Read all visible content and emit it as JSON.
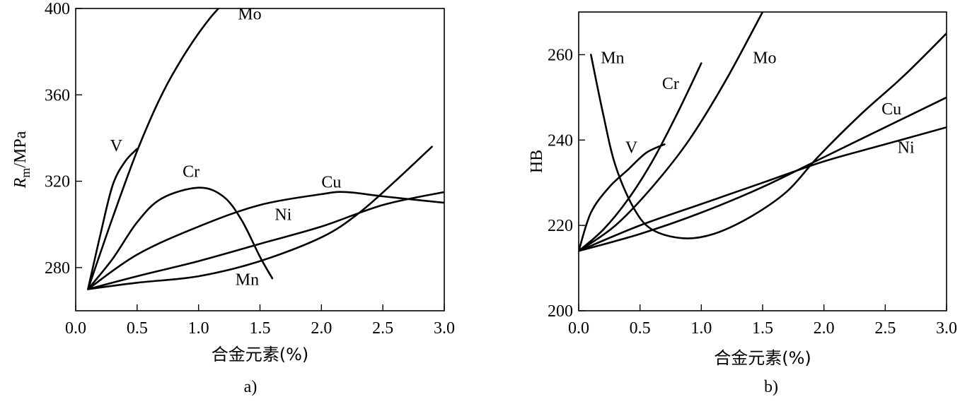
{
  "chart_data": [
    {
      "type": "line",
      "panel_label": "a)",
      "xlabel": "合金元素(%)",
      "ylabel_main": "R",
      "ylabel_sub": "m",
      "ylabel_rest": "/MPa",
      "xlim": [
        0.0,
        3.0
      ],
      "ylim": [
        260,
        400
      ],
      "x_ticks": [
        "0.0",
        "0.5",
        "1.0",
        "1.5",
        "2.0",
        "2.5",
        "3.0"
      ],
      "y_ticks": [
        "280",
        "320",
        "360",
        "400"
      ],
      "grid": false,
      "series": [
        {
          "name": "Mo",
          "points": [
            [
              0.1,
              270
            ],
            [
              0.3,
              303
            ],
            [
              0.5,
              334
            ],
            [
              0.7,
              360
            ],
            [
              0.9,
              380
            ],
            [
              1.1,
              396
            ],
            [
              1.3,
              408
            ]
          ]
        },
        {
          "name": "V",
          "points": [
            [
              0.1,
              270
            ],
            [
              0.2,
              295
            ],
            [
              0.3,
              318
            ],
            [
              0.4,
              329
            ],
            [
              0.5,
              335
            ]
          ]
        },
        {
          "name": "Cr",
          "points": [
            [
              0.1,
              270
            ],
            [
              0.3,
              284
            ],
            [
              0.5,
              301
            ],
            [
              0.7,
              312
            ],
            [
              1.0,
              317
            ],
            [
              1.2,
              313
            ],
            [
              1.35,
              302
            ],
            [
              1.5,
              285
            ],
            [
              1.6,
              275
            ]
          ]
        },
        {
          "name": "Cu",
          "points": [
            [
              0.1,
              270
            ],
            [
              0.5,
              286
            ],
            [
              1.0,
              299
            ],
            [
              1.5,
              309
            ],
            [
              2.0,
              314
            ],
            [
              2.2,
              315
            ],
            [
              2.5,
              313
            ],
            [
              3.0,
              310
            ]
          ]
        },
        {
          "name": "Ni",
          "points": [
            [
              0.1,
              270
            ],
            [
              0.5,
              276
            ],
            [
              1.0,
              283
            ],
            [
              1.5,
              291
            ],
            [
              2.0,
              299
            ],
            [
              2.5,
              309
            ],
            [
              3.0,
              315
            ]
          ]
        },
        {
          "name": "Mn",
          "points": [
            [
              0.1,
              270
            ],
            [
              0.5,
              273
            ],
            [
              1.0,
              276
            ],
            [
              1.5,
              283
            ],
            [
              2.0,
              294
            ],
            [
              2.3,
              305
            ],
            [
              2.6,
              320
            ],
            [
              2.9,
              336
            ]
          ]
        }
      ],
      "labels": [
        {
          "text": "Mo",
          "x": 1.32,
          "y": 395
        },
        {
          "text": "V",
          "x": 0.28,
          "y": 334
        },
        {
          "text": "Cr",
          "x": 0.87,
          "y": 322
        },
        {
          "text": "Cu",
          "x": 2.0,
          "y": 317
        },
        {
          "text": "Ni",
          "x": 1.62,
          "y": 302
        },
        {
          "text": "Mn",
          "x": 1.3,
          "y": 272
        }
      ]
    },
    {
      "type": "line",
      "panel_label": "b)",
      "xlabel": "合金元素(%)",
      "ylabel": "HB",
      "xlim": [
        0.0,
        3.0
      ],
      "ylim": [
        200,
        270
      ],
      "x_ticks": [
        "0.0",
        "0.5",
        "1.0",
        "1.5",
        "2.0",
        "2.5",
        "3.0"
      ],
      "y_ticks": [
        "200",
        "220",
        "240",
        "260"
      ],
      "grid": false,
      "series": [
        {
          "name": "Mn",
          "points": [
            [
              0.1,
              260
            ],
            [
              0.2,
              246
            ],
            [
              0.3,
              234
            ],
            [
              0.45,
              224
            ],
            [
              0.6,
              219
            ],
            [
              0.85,
              217
            ],
            [
              1.1,
              218
            ],
            [
              1.4,
              222
            ],
            [
              1.7,
              228
            ],
            [
              1.95,
              236
            ],
            [
              2.3,
              246
            ],
            [
              2.65,
              255
            ],
            [
              3.0,
              265
            ]
          ]
        },
        {
          "name": "Cr",
          "points": [
            [
              0.0,
              214
            ],
            [
              0.2,
              219
            ],
            [
              0.4,
              226
            ],
            [
              0.6,
              235
            ],
            [
              0.8,
              246
            ],
            [
              1.0,
              258
            ]
          ]
        },
        {
          "name": "Mo",
          "points": [
            [
              0.0,
              214
            ],
            [
              0.3,
              220
            ],
            [
              0.6,
              229
            ],
            [
              0.9,
              240
            ],
            [
              1.2,
              254
            ],
            [
              1.5,
              270
            ]
          ]
        },
        {
          "name": "V",
          "points": [
            [
              0.0,
              214
            ],
            [
              0.1,
              223
            ],
            [
              0.25,
              229
            ],
            [
              0.4,
              233
            ],
            [
              0.55,
              237
            ],
            [
              0.7,
              239
            ]
          ]
        },
        {
          "name": "Cu",
          "points": [
            [
              0.0,
              214
            ],
            [
              0.5,
              218
            ],
            [
              1.0,
              223
            ],
            [
              1.5,
              229
            ],
            [
              2.0,
              236
            ],
            [
              2.5,
              243
            ],
            [
              3.0,
              250
            ]
          ]
        },
        {
          "name": "Ni",
          "points": [
            [
              0.0,
              214
            ],
            [
              0.5,
              220
            ],
            [
              1.0,
              225
            ],
            [
              1.5,
              230
            ],
            [
              2.0,
              235
            ],
            [
              2.5,
              239
            ],
            [
              3.0,
              243
            ]
          ]
        }
      ],
      "labels": [
        {
          "text": "Mn",
          "x": 0.18,
          "y": 258
        },
        {
          "text": "Cr",
          "x": 0.68,
          "y": 252
        },
        {
          "text": "Mo",
          "x": 1.42,
          "y": 258
        },
        {
          "text": "V",
          "x": 0.38,
          "y": 237
        },
        {
          "text": "Cu",
          "x": 2.47,
          "y": 246
        },
        {
          "text": "Ni",
          "x": 2.6,
          "y": 237
        }
      ]
    }
  ]
}
